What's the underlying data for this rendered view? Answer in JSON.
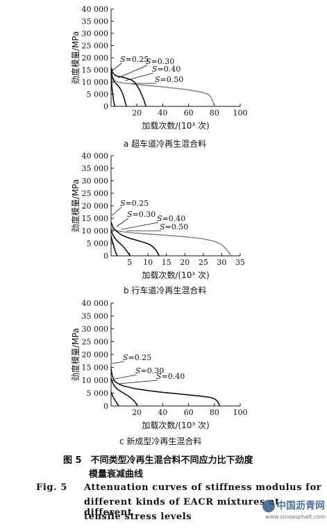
{
  "chart_data": [
    {
      "type": "line",
      "subcaption": "a 超车道冷再生混合料",
      "xlabel": "加载次数/(10³ 次)",
      "ylabel": "劲度模量/MPa",
      "xlim": [
        0,
        100
      ],
      "ylim": [
        0,
        40000
      ],
      "xticks": [
        "20",
        "40",
        "60",
        "80",
        "100"
      ],
      "yticks": [
        "0",
        "5 000",
        "10 000",
        "15 000",
        "20 000",
        "25 000",
        "30 000",
        "35 000",
        "40 000"
      ],
      "series": [
        {
          "name": "S=0.25",
          "color": "#888888",
          "x": [
            0,
            1,
            3,
            5,
            10,
            20,
            30,
            40,
            50,
            60,
            70,
            75,
            77,
            78.5,
            79.5,
            80
          ],
          "y": [
            14500,
            12000,
            10500,
            10000,
            9600,
            9000,
            8500,
            8000,
            7400,
            6800,
            5800,
            5000,
            4000,
            2600,
            1000,
            0
          ]
        },
        {
          "name": "S=0.30",
          "color": "#111111",
          "x": [
            0,
            1,
            3,
            5,
            8,
            10,
            13,
            16,
            18,
            20,
            22,
            24,
            25.5,
            26.5,
            27
          ],
          "y": [
            16000,
            14000,
            12800,
            12400,
            12100,
            11800,
            11400,
            10800,
            10000,
            8600,
            6800,
            4500,
            2500,
            800,
            0
          ]
        },
        {
          "name": "S=0.40",
          "color": "#111111",
          "x": [
            0,
            1,
            2,
            3,
            5,
            7,
            9,
            10,
            11,
            12
          ],
          "y": [
            15000,
            12000,
            10500,
            9800,
            8800,
            7400,
            5200,
            3500,
            1500,
            0
          ]
        },
        {
          "name": "S=0.50",
          "color": "#111111",
          "x": [
            0,
            0.5,
            1,
            1.5,
            2,
            2.5,
            3
          ],
          "y": [
            14000,
            9000,
            6000,
            4000,
            2200,
            800,
            0
          ]
        }
      ],
      "annotations": [
        "S=0.25",
        "S=0.30",
        "S=0.40",
        "S=0.50"
      ]
    },
    {
      "type": "line",
      "subcaption": "b 行车道冷再生混合料",
      "xlabel": "加载次数/(10³ 次)",
      "ylabel": "劲度模量/MPa",
      "xlim": [
        0,
        35
      ],
      "ylim": [
        0,
        40000
      ],
      "xticks": [
        "5",
        "10",
        "15",
        "20",
        "25",
        "30",
        "35"
      ],
      "yticks": [
        "0",
        "5 000",
        "10 000",
        "15 000",
        "20 000",
        "25 000",
        "30 000",
        "35 000",
        "40 000"
      ],
      "series": [
        {
          "name": "S=0.25",
          "color": "#888888",
          "x": [
            0,
            0.5,
            2,
            5,
            10,
            15,
            20,
            25,
            28,
            30,
            31,
            32,
            32.5
          ],
          "y": [
            11500,
            10400,
            9800,
            9300,
            8700,
            8200,
            7600,
            6800,
            5800,
            4500,
            3000,
            1200,
            0
          ]
        },
        {
          "name": "S=0.30",
          "color": "#111111",
          "x": [
            0,
            0.5,
            1,
            2,
            3,
            5,
            7,
            9,
            10.5,
            11.5,
            12.3,
            12.8,
            13
          ],
          "y": [
            13500,
            11500,
            10500,
            9200,
            8200,
            7000,
            6200,
            5300,
            4500,
            3400,
            2000,
            700,
            0
          ]
        },
        {
          "name": "S=0.40",
          "color": "#111111",
          "x": [
            0,
            0.3,
            0.8,
            1.5,
            2.5,
            3.5,
            4.2,
            4.8,
            5.2
          ],
          "y": [
            10500,
            9000,
            7500,
            6200,
            4800,
            3400,
            2000,
            800,
            0
          ]
        },
        {
          "name": "S=0.50",
          "color": "#111111",
          "x": [
            0,
            0.2,
            0.5,
            0.8,
            1.1,
            1.4,
            1.7
          ],
          "y": [
            8000,
            6500,
            5000,
            3500,
            2000,
            800,
            0
          ]
        }
      ],
      "annotations": [
        "S=0.25",
        "S=0.30",
        "S=0.40",
        "S=0.50"
      ]
    },
    {
      "type": "line",
      "subcaption": "c 新成型冷再生混合料",
      "xlabel": "加载次数/(10³ 次)",
      "ylabel": "劲度模量/MPa",
      "xlim": [
        0,
        100
      ],
      "ylim": [
        0,
        40000
      ],
      "xticks": [
        "20",
        "40",
        "60",
        "80",
        "100"
      ],
      "yticks": [
        "0",
        "5 000",
        "10 000",
        "15 000",
        "20 000",
        "25 000",
        "30 000",
        "35 000",
        "40 000"
      ],
      "series": [
        {
          "name": "S=0.25",
          "color": "#111111",
          "x": [
            0,
            1,
            3,
            6,
            10,
            20,
            30,
            40,
            50,
            60,
            70,
            76,
            80,
            82,
            83.5,
            84
          ],
          "y": [
            14500,
            11500,
            9500,
            8500,
            7700,
            6600,
            5900,
            5300,
            4800,
            4300,
            3800,
            3400,
            2800,
            2000,
            900,
            0
          ]
        },
        {
          "name": "S=0.30",
          "color": "#111111",
          "x": [
            0,
            1,
            2,
            3,
            5,
            7,
            10,
            13,
            16,
            18,
            19.5,
            20.5
          ],
          "y": [
            10800,
            9300,
            8300,
            7500,
            6500,
            5800,
            4900,
            4000,
            2800,
            1800,
            800,
            0
          ]
        },
        {
          "name": "S=0.40",
          "color": "#111111",
          "x": [
            0,
            0.5,
            1,
            2,
            3,
            4,
            5,
            6
          ],
          "y": [
            5500,
            4700,
            4100,
            3200,
            2300,
            1500,
            700,
            0
          ]
        }
      ],
      "annotations": [
        "S=0.25",
        "S=0.30",
        "S=0.40"
      ]
    }
  ],
  "figure": {
    "caption_cn_line1": "图 5　不同类型冷再生混合料不同应力比下劲度",
    "caption_cn_line2": "模量衰减曲线",
    "caption_en_label": "Fig.  5",
    "caption_en_line1": "Attenuation  curves  of  stiffness  modulus  for",
    "caption_en_line2": "different  kinds  of  EACR  mixtures  at  different",
    "caption_en_line3": "tensile  stress  levels"
  },
  "watermark": {
    "text": "中国沥青网",
    "url": "www.sinoasphalt.com"
  }
}
